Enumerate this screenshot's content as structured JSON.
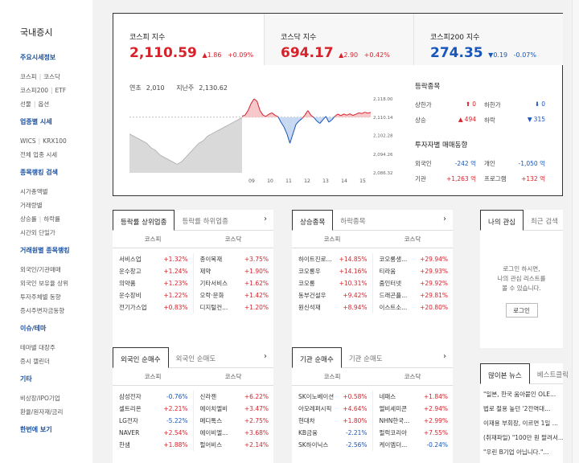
{
  "sidebar": {
    "title": "국내증시",
    "sections": [
      {
        "head": "주요시세정보",
        "links": [
          [
            "코스피",
            "코스닥"
          ],
          [
            "코스피200",
            "ETF"
          ],
          [
            "선물",
            "옵션"
          ]
        ]
      },
      {
        "head": "업종별 시세",
        "links": [
          [
            "WICS",
            "KRX100"
          ],
          [
            "전체 업종 시세"
          ]
        ]
      },
      {
        "head": "종목랭킹 검색",
        "links": [
          [
            "시가총액별"
          ],
          [
            "거래량별"
          ],
          [
            "상승률",
            "하락률"
          ],
          [
            "시간외 단일가"
          ]
        ]
      },
      {
        "head": "거래원별 종목랭킹",
        "links": [
          [
            "외국인/기관매매"
          ],
          [
            "외국인 보유율 상위"
          ],
          [
            "투자주체별 동향"
          ],
          [
            "증시주변자금동향"
          ]
        ]
      },
      {
        "head": "이슈/테마",
        "links": [
          [
            "테마별 대장주"
          ],
          [
            "증시 캘린더"
          ]
        ]
      },
      {
        "head": "기타",
        "links": [
          [
            "비상장/IPO기업"
          ],
          [
            "환율/원자재/금리"
          ]
        ]
      },
      {
        "head": "한번에 보기",
        "links": []
      }
    ]
  },
  "indices": [
    {
      "name": "코스피 지수",
      "value": "2,110.59",
      "arrow": "▲",
      "change": "1.86",
      "pct": "+0.09%",
      "dir": "up"
    },
    {
      "name": "코스닥 지수",
      "value": "694.17",
      "arrow": "▲",
      "change": "2.90",
      "pct": "+0.42%",
      "dir": "up"
    },
    {
      "name": "코스피200 지수",
      "value": "274.35",
      "arrow": "▼",
      "change": "0.19",
      "pct": "-0.07%",
      "dir": "dn"
    }
  ],
  "chart_meta": {
    "open_label": "연초",
    "open_value": "2,010",
    "prev_label": "지난주",
    "prev_value": "2,130.62"
  },
  "chart_data": {
    "type": "line",
    "x_ticks": [
      "09",
      "10",
      "11",
      "12",
      "13",
      "14",
      "15"
    ],
    "y_ticks": [
      "2,118.00",
      "2,110.14",
      "2,102.28",
      "2,094.26",
      "2,086.32"
    ],
    "baseline": 2110.14,
    "premarket_values": [
      2103,
      2102,
      2101,
      2100,
      2099,
      2097,
      2096,
      2094,
      2093,
      2092,
      2091,
      2090,
      2091,
      2093,
      2095,
      2097,
      2099,
      2100,
      2102,
      2103,
      2104,
      2105,
      2106,
      2107,
      2108,
      2109,
      2110
    ],
    "session_values": [
      2110.6,
      2111,
      2113,
      2116,
      2118,
      2117,
      2113,
      2111,
      2110.5,
      2111.5,
      2112,
      2111,
      2110.4,
      2108,
      2106,
      2103,
      2099,
      2103,
      2107,
      2108.5,
      2109.5,
      2111,
      2113,
      2111,
      2110,
      2108.5,
      2107.5,
      2109,
      2110.5,
      2108,
      2109,
      2110.5,
      2111.5,
      2110.8,
      2111.5,
      2111,
      2111.6,
      2110.9,
      2111.4,
      2112,
      2111.7,
      2112.3,
      2111.9,
      2112.2
    ]
  },
  "rise_fall": {
    "head": "등락종목",
    "rows": [
      {
        "a_label": "상한가",
        "a_val": "0",
        "a_arrow": "⬆",
        "a_dir": "up",
        "b_label": "하한가",
        "b_val": "0",
        "b_arrow": "⬇",
        "b_dir": "dn"
      },
      {
        "a_label": "상승",
        "a_val": "494",
        "a_arrow": "▲",
        "a_dir": "up",
        "b_label": "하락",
        "b_val": "315",
        "b_arrow": "▼",
        "b_dir": "dn"
      }
    ]
  },
  "investors": {
    "head": "투자자별 매매동향",
    "rows": [
      {
        "a_label": "외국인",
        "a_val": "-242 억",
        "a_dir": "dn",
        "b_label": "개인",
        "b_val": "-1,050 억",
        "b_dir": "dn"
      },
      {
        "a_label": "기관",
        "a_val": "+1,263 억",
        "a_dir": "up",
        "b_label": "프로그램",
        "b_val": "+132 억",
        "b_dir": "up"
      }
    ]
  },
  "panels": [
    {
      "id": "sector",
      "tabs": [
        "등락률 상위업종",
        "등락률 하위업종"
      ],
      "cols": [
        "코스피",
        "코스닥"
      ],
      "left": [
        [
          "서비스업",
          "+1.32%"
        ],
        [
          "운수창고",
          "+1.24%"
        ],
        [
          "의약품",
          "+1.23%"
        ],
        [
          "운수장비",
          "+1.22%"
        ],
        [
          "전기가스업",
          "+0.83%"
        ]
      ],
      "right": [
        [
          "종이목재",
          "+3.75%"
        ],
        [
          "제약",
          "+1.90%"
        ],
        [
          "기타서비스",
          "+1.62%"
        ],
        [
          "오락·문화",
          "+1.42%"
        ],
        [
          "디지털컨...",
          "+1.20%"
        ]
      ]
    },
    {
      "id": "stock",
      "tabs": [
        "상승종목",
        "하락종목"
      ],
      "cols": [
        "코스피",
        "코스닥"
      ],
      "left": [
        [
          "하이트진로...",
          "+14.85%"
        ],
        [
          "코오롱우",
          "+14.16%"
        ],
        [
          "코오롱",
          "+10.31%"
        ],
        [
          "동부건설우",
          "+9.42%"
        ],
        [
          "원신석재",
          "+8.94%"
        ]
      ],
      "right": [
        [
          "코오롱생...",
          "+29.94%"
        ],
        [
          "티라움",
          "+29.93%"
        ],
        [
          "줌인터넷",
          "+29.92%"
        ],
        [
          "드래곤플...",
          "+29.81%"
        ],
        [
          "이스트소...",
          "+20.80%"
        ]
      ]
    },
    {
      "id": "foreign",
      "tabs": [
        "외국인 순매수",
        "외국인 순매도"
      ],
      "cols": [
        "코스피",
        "코스닥"
      ],
      "left": [
        [
          "삼성전자",
          "-0.76%"
        ],
        [
          "셀트리온",
          "+2.21%"
        ],
        [
          "LG전자",
          "-5.22%"
        ],
        [
          "NAVER",
          "+2.54%"
        ],
        [
          "한샘",
          "+1.88%"
        ]
      ],
      "right": [
        [
          "신라젠",
          "+6.22%"
        ],
        [
          "에이치엘비",
          "+3.47%"
        ],
        [
          "메디톡스",
          "+2.75%"
        ],
        [
          "에이비엘...",
          "+3.68%"
        ],
        [
          "펄어비스",
          "+2.14%"
        ]
      ]
    },
    {
      "id": "inst",
      "tabs": [
        "기관 순매수",
        "기관 순매도"
      ],
      "cols": [
        "코스피",
        "코스닥"
      ],
      "left": [
        [
          "SK이노베이션",
          "+0.58%"
        ],
        [
          "아모레퍼시픽",
          "+4.64%"
        ],
        [
          "현대차",
          "+1.80%"
        ],
        [
          "KB금융",
          "-2.21%"
        ],
        [
          "SK하이닉스",
          "-2.56%"
        ]
      ],
      "right": [
        [
          "네패스",
          "+1.84%"
        ],
        [
          "엘비세미콘",
          "+2.94%"
        ],
        [
          "NHN한국...",
          "+2.99%"
        ],
        [
          "펄럭코리아",
          "+7.55%"
        ],
        [
          "케이엠더...",
          "-0.24%"
        ]
      ]
    }
  ],
  "mine": {
    "tabs": [
      "나의 관심",
      "최근 검색"
    ],
    "msg1": "로그인 하시면,",
    "msg2": "나의 관심 리스트를",
    "msg3": "볼 수 있습니다.",
    "login": "로그인"
  },
  "news": {
    "tabs": [
      "많이본 뉴스",
      "베스트클릭"
    ],
    "items": [
      "\"일본, 한국 움아붙인 OLE...",
      "법로 절용 높던 '2전역대...",
      "이재용 부회장, 이르면 1일 ...",
      "(취재파일) \"100만 원 팔려서...",
      "\"우린 B기업 아닙니다.\"..."
    ]
  },
  "colors": {
    "up": "#d6232b",
    "down": "#1a55b8"
  }
}
